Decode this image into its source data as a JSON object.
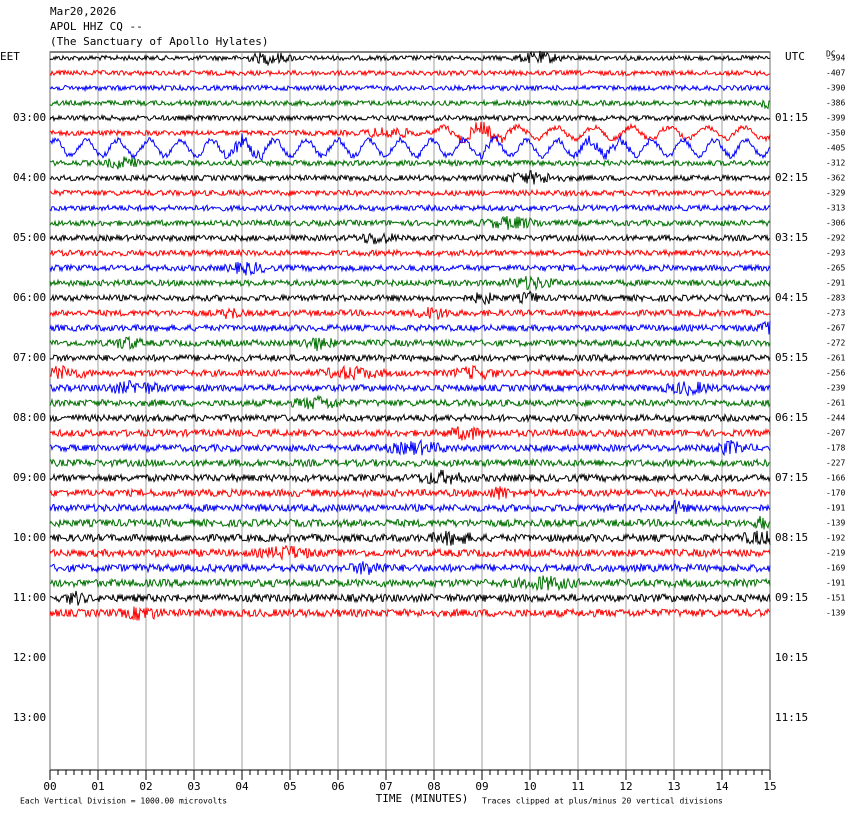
{
  "header": {
    "date": "Mar20,2026",
    "station": "APOL HHZ CQ --",
    "location": "(The Sanctuary of Apollo Hylates)"
  },
  "chart_data": {
    "type": "helicorder",
    "xlabel": "TIME (MINUTES)",
    "xlim": [
      0,
      15
    ],
    "xticks": [
      {
        "value": 0,
        "label": "00"
      },
      {
        "value": 1,
        "label": "01"
      },
      {
        "value": 2,
        "label": "02"
      },
      {
        "value": 3,
        "label": "03"
      },
      {
        "value": 4,
        "label": "04"
      },
      {
        "value": 5,
        "label": "05"
      },
      {
        "value": 6,
        "label": "06"
      },
      {
        "value": 7,
        "label": "07"
      },
      {
        "value": 8,
        "label": "08"
      },
      {
        "value": 9,
        "label": "09"
      },
      {
        "value": 10,
        "label": "10"
      },
      {
        "value": 11,
        "label": "11"
      },
      {
        "value": 12,
        "label": "12"
      },
      {
        "value": 13,
        "label": "13"
      },
      {
        "value": 14,
        "label": "14"
      },
      {
        "value": 15,
        "label": "15"
      }
    ],
    "left_timezone": "EET",
    "right_timezone": "UTC",
    "left_times": [
      "03:00",
      "04:00",
      "05:00",
      "06:00",
      "07:00",
      "08:00",
      "09:00",
      "10:00",
      "11:00",
      "12:00",
      "13:00"
    ],
    "right_times": [
      "01:15",
      "02:15",
      "03:15",
      "04:15",
      "05:15",
      "06:15",
      "07:15",
      "08:15",
      "09:15",
      "10:15",
      "11:15"
    ],
    "dc_label": "DC",
    "dc_offsets": [
      -394,
      -407,
      -390,
      -386,
      -399,
      -350,
      -405,
      -312,
      -362,
      -329,
      -313,
      -306,
      -292,
      -293,
      -265,
      -291,
      -283,
      -273,
      -267,
      -272,
      -261,
      -256,
      -239,
      -261,
      -244,
      -207,
      -178,
      -227,
      -166,
      -170,
      -191,
      -139,
      -192,
      -219,
      -169,
      -191,
      -151,
      -139
    ],
    "colors": [
      "#000000",
      "#ff0000",
      "#0000ff",
      "#007000"
    ],
    "scale_note": "Each Vertical Division = 1000.00 microvolts",
    "clip_note": "Traces clipped at plus/minus 20 vertical divisions"
  }
}
